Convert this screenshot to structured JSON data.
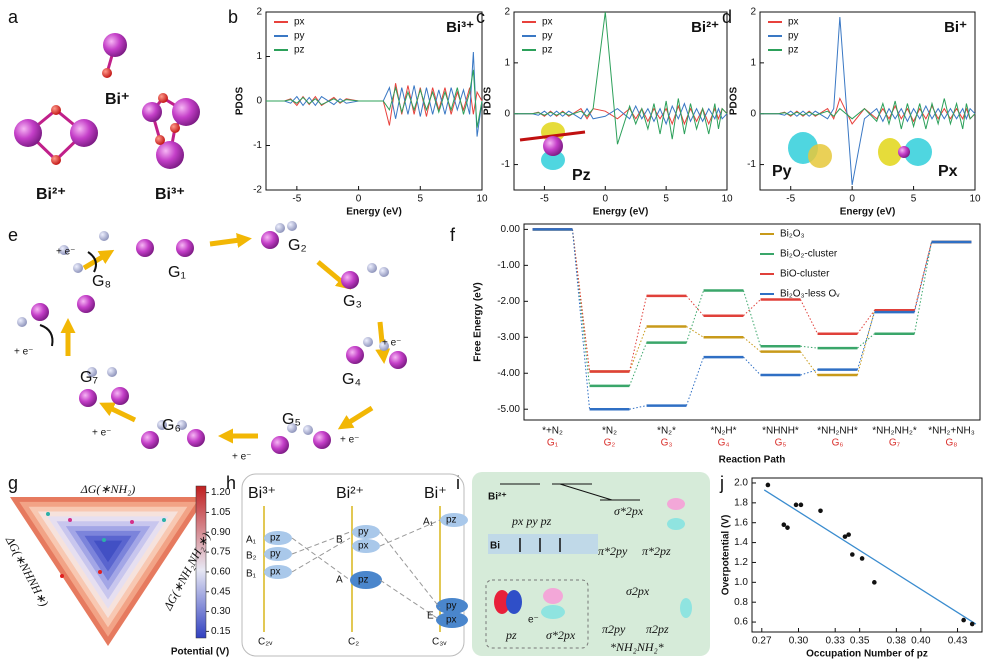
{
  "panel_labels": [
    "a",
    "b",
    "c",
    "d",
    "e",
    "f",
    "g",
    "h",
    "i",
    "j"
  ],
  "a": {
    "labels": [
      "Bi⁺",
      "Bi²⁺",
      "Bi³⁺"
    ]
  },
  "chart_data": [
    {
      "type": "line",
      "title": "Bi³⁺",
      "xlabel": "Energy (eV)",
      "ylabel": "PDOS",
      "legend": "upper left",
      "x": [
        -7.5,
        -6,
        -5.5,
        -5,
        -4.5,
        -4,
        -3.5,
        -3,
        -2,
        -1.5,
        -1,
        0,
        1,
        2,
        2.5,
        3,
        3.5,
        4,
        4.5,
        5,
        5.5,
        6,
        6.5,
        7,
        7.5,
        8,
        8.5,
        9,
        9.3,
        9.6,
        10
      ],
      "series": [
        {
          "name": "px",
          "color": "#e8413c",
          "values": [
            0,
            0,
            0.05,
            -0.1,
            0.1,
            -0.08,
            0.1,
            -0.1,
            0.08,
            -0.05,
            0.05,
            0,
            0,
            0,
            -0.55,
            0.4,
            -0.3,
            0.35,
            -0.3,
            0.3,
            -0.35,
            0.3,
            -0.2,
            0.3,
            -0.3,
            0.2,
            -0.2,
            0.3,
            -0.3,
            0.2,
            0
          ]
        },
        {
          "name": "py",
          "color": "#3a78c4",
          "values": [
            0,
            0,
            -0.05,
            0.1,
            -0.1,
            0.08,
            -0.1,
            0.1,
            -0.08,
            0.05,
            -0.05,
            0,
            0,
            0,
            0.3,
            -0.4,
            0.3,
            -0.3,
            0.35,
            -0.35,
            0.3,
            -0.3,
            0.25,
            -0.3,
            0.3,
            -0.2,
            0.25,
            -0.3,
            1.1,
            -0.8,
            0
          ]
        },
        {
          "name": "pz",
          "color": "#2ca05a",
          "values": [
            0,
            0,
            0.03,
            -0.05,
            0.08,
            -0.06,
            0.05,
            -0.08,
            0.05,
            -0.03,
            0.03,
            0,
            0,
            0,
            -0.2,
            0.3,
            -0.25,
            0.2,
            -0.2,
            0.25,
            -0.2,
            0.2,
            -0.25,
            0.2,
            -0.2,
            0.3,
            -0.3,
            0.2,
            0.7,
            -0.6,
            0
          ]
        }
      ],
      "xlim": [
        -7.5,
        10
      ],
      "xticks": [
        -5,
        0,
        5,
        10
      ],
      "ylim": [
        -2,
        2
      ],
      "yticks": [
        -2,
        -1,
        0,
        1,
        2
      ]
    },
    {
      "type": "line",
      "title": "Bi²⁺",
      "xlabel": "Energy (eV)",
      "ylabel": "PDOS",
      "legend": "upper left",
      "annotations": [
        "Pz"
      ],
      "x": [
        -7.5,
        -6,
        -5.5,
        -5,
        -4.5,
        -4,
        -3.5,
        -3,
        -2,
        -1.5,
        -1,
        0,
        1,
        2,
        2.5,
        3,
        3.5,
        4,
        4.5,
        5,
        5.5,
        6,
        6.5,
        7,
        7.5,
        8,
        8.5,
        9,
        9.3,
        9.6,
        10
      ],
      "series": [
        {
          "name": "px",
          "color": "#e8413c",
          "values": [
            0,
            0,
            0.03,
            -0.05,
            0.05,
            -0.05,
            0.05,
            -0.05,
            0.1,
            -0.1,
            0.1,
            0.05,
            -0.1,
            0.1,
            -0.1,
            0.1,
            -0.15,
            0.1,
            -0.1,
            0.1,
            -0.2,
            0.15,
            -0.2,
            0.1,
            -0.15,
            0.1,
            -0.2,
            0.1,
            -0.1,
            0.1,
            0
          ]
        },
        {
          "name": "py",
          "color": "#3a78c4",
          "values": [
            0,
            0,
            -0.03,
            0.05,
            -0.05,
            0.05,
            -0.05,
            0.05,
            -0.1,
            0.1,
            -0.1,
            -0.05,
            0.1,
            -0.1,
            0.15,
            -0.1,
            0.1,
            -0.15,
            0.1,
            -0.2,
            0.15,
            -0.1,
            0.2,
            -0.15,
            0.1,
            -0.15,
            0.1,
            -0.1,
            0.1,
            -0.1,
            0
          ]
        },
        {
          "name": "pz",
          "color": "#2ca05a",
          "values": [
            0,
            0,
            0.02,
            -0.03,
            0.03,
            -0.03,
            0.03,
            -0.03,
            0.05,
            -0.05,
            0.1,
            2,
            -0.6,
            0.15,
            -0.2,
            0.1,
            -0.3,
            0.2,
            -0.4,
            0.25,
            -0.5,
            0.3,
            -0.4,
            0.2,
            -0.3,
            0.1,
            -0.4,
            0.2,
            -0.3,
            0.1,
            0
          ]
        }
      ],
      "xlim": [
        -7.5,
        10
      ],
      "xticks": [
        -5,
        0,
        5,
        10
      ],
      "ylim": [
        -1.5,
        2
      ],
      "yticks": [
        -1,
        0,
        1,
        2
      ]
    },
    {
      "type": "line",
      "title": "Bi⁺",
      "xlabel": "Energy (eV)",
      "ylabel": "PDOS",
      "legend": "upper left",
      "annotations": [
        "Py",
        "Px"
      ],
      "x": [
        -7.5,
        -6,
        -5.5,
        -5,
        -4.5,
        -4,
        -3.5,
        -3,
        -2,
        -1.5,
        -1,
        0,
        1,
        2,
        2.5,
        3,
        3.5,
        4,
        4.5,
        5,
        5.5,
        6,
        6.5,
        7,
        7.5,
        8,
        8.5,
        9,
        9.3,
        9.6,
        10
      ],
      "series": [
        {
          "name": "px",
          "color": "#e8413c",
          "values": [
            0,
            0,
            0.03,
            -0.05,
            0.05,
            -0.05,
            0.05,
            -0.05,
            0.1,
            -0.1,
            0.3,
            -0.2,
            0.1,
            -0.1,
            0.1,
            -0.1,
            0.15,
            -0.1,
            0.1,
            -0.15,
            0.1,
            -0.1,
            0.15,
            -0.1,
            0.1,
            -0.1,
            0.1,
            -0.1,
            0.1,
            -0.1,
            0
          ]
        },
        {
          "name": "py",
          "color": "#3a78c4",
          "values": [
            0,
            0,
            -0.03,
            0.05,
            -0.05,
            0.05,
            -0.05,
            0.05,
            -0.1,
            0.1,
            1.9,
            -1.4,
            -0.1,
            0.1,
            -0.15,
            0.1,
            -0.1,
            0.1,
            -0.15,
            0.1,
            -0.1,
            0.15,
            -0.1,
            0.1,
            -0.1,
            0.1,
            -0.1,
            0.1,
            -0.1,
            0.1,
            0
          ]
        },
        {
          "name": "pz",
          "color": "#2ca05a",
          "values": [
            0,
            0,
            0.02,
            -0.03,
            0.03,
            -0.03,
            0.03,
            -0.03,
            0.05,
            -0.05,
            0.1,
            -0.1,
            0.1,
            -0.15,
            0.2,
            -0.2,
            0.25,
            -0.3,
            0.2,
            -0.25,
            0.2,
            -0.3,
            0.2,
            -0.2,
            0.3,
            -0.2,
            0.2,
            -0.3,
            0.2,
            -0.1,
            0
          ]
        }
      ],
      "xlim": [
        -7.5,
        10
      ],
      "xticks": [
        -5,
        0,
        5,
        10
      ],
      "ylim": [
        -1.5,
        2
      ],
      "yticks": [
        -1,
        0,
        1,
        2
      ]
    },
    {
      "type": "step",
      "xlabel": "Reaction Path",
      "ylabel": "Free Energy (eV)",
      "legend": "upper right",
      "categories": [
        "*+N₂",
        "*N₂",
        "*N₂*",
        "*N₂H*",
        "*NHNH*",
        "*NH₂NH*",
        "*NH₂NH₂*",
        "*NH₂+NH₃"
      ],
      "sublabels": [
        "G₁",
        "G₂",
        "G₃",
        "G₄",
        "G₅",
        "G₆",
        "G₇",
        "G₈"
      ],
      "sublabel_color": "#d9302c",
      "series": [
        {
          "name": "Bi₂O₃",
          "color": "#c89a1a",
          "values": [
            0,
            -3.95,
            -2.7,
            -3.0,
            -3.4,
            -4.05,
            -2.25,
            -0.35
          ]
        },
        {
          "name": "Bi₂O₂-cluster",
          "color": "#3aa66a",
          "values": [
            0,
            -4.35,
            -3.15,
            -1.7,
            -3.25,
            -3.3,
            -2.9,
            -0.35
          ]
        },
        {
          "name": "BiO-cluster",
          "color": "#e0403a",
          "values": [
            0,
            -3.95,
            -1.85,
            -2.4,
            -1.95,
            -2.9,
            -2.25,
            -0.35
          ]
        },
        {
          "name": "Bi₂O₃-less Oᵥ",
          "color": "#2f6fc4",
          "values": [
            0,
            -5.0,
            -4.9,
            -3.55,
            -4.05,
            -3.9,
            -2.3,
            -0.35
          ]
        }
      ],
      "ylim": [
        -5.3,
        0.15
      ],
      "yticks": [
        {
          "value": 0,
          "label": "0.00"
        },
        {
          "value": -1,
          "label": "-1.00"
        },
        {
          "value": -2,
          "label": "-2.00"
        },
        {
          "value": -3,
          "label": "-3.00"
        },
        {
          "value": -4,
          "label": "-4.00"
        },
        {
          "value": -5,
          "label": "-5.00"
        }
      ]
    },
    {
      "type": "scatter",
      "xlabel": "Occupation Number of pz",
      "ylabel": "Overpotential (V)",
      "color": "#111111",
      "x": [
        0.275,
        0.288,
        0.291,
        0.298,
        0.302,
        0.318,
        0.338,
        0.341,
        0.344,
        0.352,
        0.362,
        0.435,
        0.442
      ],
      "values": [
        1.98,
        1.58,
        1.55,
        1.78,
        1.78,
        1.72,
        1.46,
        1.48,
        1.28,
        1.24,
        1.0,
        0.62,
        0.58
      ],
      "fit": {
        "x": [
          0.272,
          0.445
        ],
        "values": [
          1.93,
          0.58
        ],
        "color": "#3a8ccf"
      },
      "xlim": [
        0.262,
        0.45
      ],
      "xticks": [
        0.27,
        {
          "value": 0.3,
          "label": "0.30"
        },
        0.33,
        0.35,
        0.38,
        {
          "value": 0.4,
          "label": "0.40"
        },
        0.43
      ],
      "ylim": [
        0.5,
        2.05
      ],
      "yticks": [
        0.6,
        0.8,
        {
          "value": 1,
          "label": "1.0"
        },
        1.2,
        1.4,
        1.6,
        1.8,
        {
          "value": 2,
          "label": "2.0"
        }
      ]
    }
  ],
  "e": {
    "states": [
      "G₁",
      "G₂",
      "G₃",
      "G₄",
      "G₅",
      "G₆",
      "G₇",
      "G₈"
    ],
    "electron": "+ e⁻"
  },
  "g": {
    "axes": [
      "ΔG(∗NH₂)",
      "ΔG(∗NHNH∗)",
      "ΔG(∗NH₂NH₂∗)"
    ],
    "colorbar": {
      "label": "Potential (V)",
      "clim": [
        0.1,
        1.25
      ],
      "ticks": [
        0.15,
        {
          "value": 0.3,
          "label": "0.30"
        },
        0.45,
        {
          "value": 0.6,
          "label": "0.60"
        },
        0.75,
        {
          "value": 0.9,
          "label": "0.90"
        },
        1.05,
        {
          "value": 1.2,
          "label": "1.20"
        }
      ]
    }
  },
  "h": {
    "columns": [
      "Bi³⁺",
      "Bi²⁺",
      "Bi⁺"
    ],
    "symmetry": [
      "C₂ᵥ",
      "C₂",
      "C₃ᵥ"
    ],
    "bi3_levels": [
      "A₁",
      "B₂",
      "B₁"
    ],
    "bi3_orbitals": [
      "pz",
      "py",
      "px"
    ],
    "bi2_levels": [
      "B",
      "A"
    ],
    "bi2_orbitals": [
      "py",
      "px",
      "pz"
    ],
    "bi1_levels": [
      "A₁",
      "E"
    ],
    "bi1_orbitals": [
      "pz",
      "py",
      "px"
    ]
  },
  "i": {
    "ions": [
      "Bi²⁺",
      "Bi"
    ],
    "p_orbitals": "px py pz",
    "antibonding": [
      "σ*2px",
      "π*2py",
      "π*2pz"
    ],
    "bonding": [
      "σ2px",
      "π2py",
      "π2pz"
    ],
    "inset": [
      "pz",
      "e⁻",
      "σ*2px"
    ],
    "adsorbate": "*NH₂NH₂*"
  }
}
